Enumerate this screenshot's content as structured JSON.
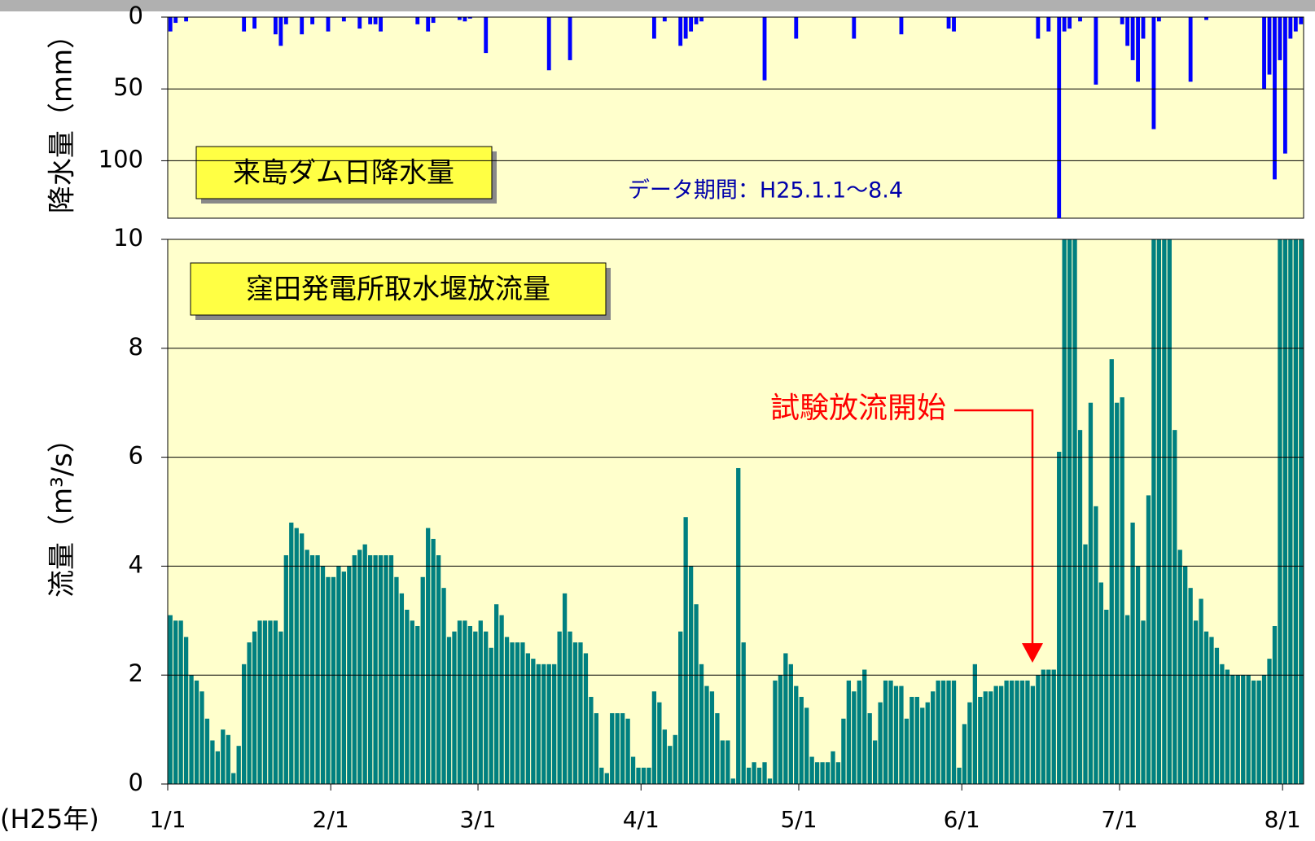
{
  "chart_data": [
    {
      "type": "bar",
      "ylabel": "降水量（mm）",
      "title": "来島ダム日降水量",
      "annotation": "データ期間：H25.1.1～8.4",
      "color": "#0000ff",
      "inverted": true,
      "ylim": [
        0,
        140
      ],
      "yticks": [
        0,
        50,
        100
      ],
      "grid": true,
      "values": [
        10,
        4,
        0,
        3,
        0,
        0,
        0,
        0,
        0,
        0,
        0,
        0,
        0,
        0,
        10,
        0,
        8,
        0,
        0,
        0,
        12,
        20,
        5,
        0,
        0,
        12,
        0,
        5,
        0,
        0,
        10,
        0,
        0,
        3,
        0,
        0,
        8,
        0,
        5,
        5,
        10,
        0,
        0,
        0,
        0,
        0,
        0,
        5,
        0,
        10,
        4,
        0,
        0,
        0,
        0,
        2,
        3,
        1,
        0,
        0,
        25,
        0,
        0,
        0,
        0,
        0,
        0,
        0,
        0,
        0,
        0,
        0,
        37,
        0,
        0,
        0,
        30,
        0,
        0,
        0,
        0,
        0,
        0,
        0,
        0,
        0,
        0,
        0,
        0,
        0,
        0,
        0,
        15,
        0,
        3,
        0,
        0,
        20,
        15,
        10,
        5,
        3,
        0,
        0,
        0,
        0,
        0,
        0,
        0,
        0,
        0,
        0,
        0,
        44,
        0,
        0,
        0,
        0,
        0,
        15,
        0,
        0,
        0,
        0,
        0,
        0,
        0,
        0,
        0,
        0,
        15,
        0,
        0,
        0,
        0,
        0,
        0,
        0,
        0,
        12,
        0,
        0,
        0,
        0,
        0,
        0,
        0,
        0,
        8,
        10,
        0,
        0,
        0,
        0,
        0,
        0,
        0,
        0,
        0,
        0,
        0,
        0,
        0,
        0,
        0,
        15,
        0,
        10,
        0,
        140,
        10,
        8,
        0,
        3,
        0,
        0,
        47,
        0,
        0,
        0,
        0,
        5,
        20,
        30,
        45,
        15,
        0,
        78,
        3,
        0,
        0,
        0,
        0,
        0,
        45,
        0,
        0,
        2,
        0,
        0,
        0,
        0,
        0,
        0,
        0,
        0,
        0,
        0,
        50,
        40,
        113,
        30,
        95,
        15,
        10,
        5
      ]
    },
    {
      "type": "bar",
      "ylabel": "流量（m³/s）",
      "title": "窪田発電所取水堰放流量",
      "annotation": "試験放流開始",
      "color": "#008080",
      "x_prefix": "(H25年)",
      "ylim": [
        0,
        10
      ],
      "yticks": [
        0,
        2,
        4,
        6,
        8,
        10
      ],
      "grid": true,
      "categories": [
        "1/1",
        null,
        null,
        null,
        null,
        null,
        null,
        null,
        null,
        null,
        null,
        null,
        null,
        null,
        null,
        null,
        null,
        null,
        null,
        null,
        null,
        null,
        null,
        null,
        null,
        null,
        null,
        null,
        null,
        null,
        null,
        "2/1",
        null,
        null,
        null,
        null,
        null,
        null,
        null,
        null,
        null,
        null,
        null,
        null,
        null,
        null,
        null,
        null,
        null,
        null,
        null,
        null,
        null,
        null,
        null,
        null,
        null,
        null,
        null,
        "3/1",
        null,
        null,
        null,
        null,
        null,
        null,
        null,
        null,
        null,
        null,
        null,
        null,
        null,
        null,
        null,
        null,
        null,
        null,
        null,
        null,
        null,
        null,
        null,
        null,
        null,
        null,
        null,
        null,
        null,
        null,
        "4/1",
        null,
        null,
        null,
        null,
        null,
        null,
        null,
        null,
        null,
        null,
        null,
        null,
        null,
        null,
        null,
        null,
        null,
        null,
        null,
        null,
        null,
        null,
        null,
        null,
        null,
        null,
        null,
        null,
        null,
        "5/1",
        null,
        null,
        null,
        null,
        null,
        null,
        null,
        null,
        null,
        null,
        null,
        null,
        null,
        null,
        null,
        null,
        null,
        null,
        null,
        null,
        null,
        null,
        null,
        null,
        null,
        null,
        null,
        null,
        null,
        null,
        "6/1",
        null,
        null,
        null,
        null,
        null,
        null,
        null,
        null,
        null,
        null,
        null,
        null,
        null,
        null,
        null,
        null,
        null,
        null,
        null,
        null,
        null,
        null,
        null,
        null,
        null,
        null,
        null,
        null,
        null,
        "7/1",
        null,
        null,
        null,
        null,
        null,
        null,
        null,
        null,
        null,
        null,
        null,
        null,
        null,
        null,
        null,
        null,
        null,
        null,
        null,
        null,
        null,
        null,
        null,
        null,
        null,
        null,
        null,
        null,
        null,
        null,
        "8/1",
        null,
        null,
        null
      ],
      "values": [
        3.1,
        3.0,
        3.0,
        2.7,
        2.0,
        1.9,
        1.7,
        1.2,
        0.8,
        0.6,
        1.0,
        0.9,
        0.2,
        0.7,
        2.2,
        2.6,
        2.8,
        3.0,
        3.0,
        3.0,
        3.0,
        2.8,
        4.2,
        4.8,
        4.7,
        4.6,
        4.3,
        4.2,
        4.2,
        4.0,
        3.8,
        3.8,
        4.0,
        3.9,
        4.0,
        4.2,
        4.3,
        4.4,
        4.2,
        4.2,
        4.2,
        4.2,
        4.2,
        3.8,
        3.5,
        3.2,
        3.0,
        2.9,
        3.8,
        4.7,
        4.5,
        4.2,
        3.6,
        2.7,
        2.8,
        3.0,
        3.0,
        2.9,
        2.8,
        3.0,
        2.8,
        2.5,
        3.3,
        3.1,
        2.7,
        2.6,
        2.6,
        2.6,
        2.4,
        2.3,
        2.2,
        2.2,
        2.2,
        2.2,
        2.8,
        3.5,
        2.8,
        2.6,
        2.6,
        2.4,
        1.6,
        1.3,
        0.3,
        0.2,
        1.3,
        1.3,
        1.3,
        1.2,
        0.5,
        0.3,
        0.3,
        0.3,
        1.7,
        1.5,
        1.0,
        0.7,
        0.9,
        2.8,
        4.9,
        4.0,
        3.3,
        2.2,
        1.8,
        1.7,
        1.3,
        0.8,
        0.8,
        0.1,
        5.8,
        2.6,
        0.3,
        0.4,
        0.3,
        0.4,
        0.1,
        1.9,
        2.0,
        2.4,
        2.2,
        1.8,
        1.6,
        1.4,
        0.5,
        0.4,
        0.4,
        0.4,
        0.6,
        0.4,
        1.2,
        1.9,
        1.7,
        1.9,
        2.1,
        1.3,
        0.8,
        1.5,
        1.9,
        1.9,
        1.8,
        1.8,
        1.2,
        1.6,
        1.6,
        1.4,
        1.5,
        1.7,
        1.9,
        1.9,
        1.9,
        1.9,
        0.3,
        1.1,
        1.5,
        2.2,
        1.6,
        1.7,
        1.7,
        1.8,
        1.8,
        1.9,
        1.9,
        1.9,
        1.9,
        1.9,
        1.8,
        2.0,
        2.1,
        2.1,
        2.1,
        6.1,
        10,
        10,
        10,
        6.5,
        4.4,
        7.0,
        5.1,
        3.7,
        3.2,
        7.8,
        7.0,
        7.1,
        3.1,
        4.8,
        4.0,
        3.0,
        5.3,
        10,
        10,
        10,
        10,
        6.5,
        4.3,
        4.0,
        3.6,
        3.0,
        3.4,
        2.8,
        2.7,
        2.5,
        2.2,
        2.1,
        2.0,
        2.0,
        2.0,
        2.0,
        1.9,
        1.9,
        2.0,
        2.3,
        2.9,
        10,
        10,
        10,
        10,
        10
      ]
    }
  ]
}
